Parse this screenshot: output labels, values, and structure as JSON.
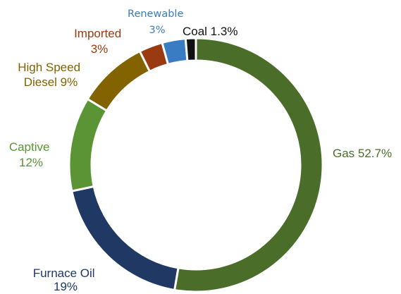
{
  "chart_data": {
    "type": "pie",
    "variant": "donut",
    "title": "",
    "slices": [
      {
        "name": "Gas",
        "value": 52.7,
        "label_lines": [
          "Gas 52.7%"
        ],
        "color": "#4a6e2a"
      },
      {
        "name": "Furnace Oil",
        "value": 19,
        "label_lines": [
          "Furnace Oil",
          "19%"
        ],
        "color": "#1f3864"
      },
      {
        "name": "Captive",
        "value": 12,
        "label_lines": [
          "Captive",
          "12%"
        ],
        "color": "#5b9434"
      },
      {
        "name": "High Speed Diesel",
        "value": 9,
        "label_lines": [
          "High Speed",
          "Diesel 9%"
        ],
        "color": "#826300"
      },
      {
        "name": "Imported",
        "value": 3,
        "label_lines": [
          "Imported",
          "3%"
        ],
        "color": "#9a3a10"
      },
      {
        "name": "Renewable",
        "value": 3,
        "label_lines": [
          "Renewable",
          "3%"
        ],
        "color": "#3a7cc4"
      },
      {
        "name": "Coal",
        "value": 1.3,
        "label_lines": [
          "Coal 1.3%"
        ],
        "color": "#111111"
      }
    ]
  }
}
